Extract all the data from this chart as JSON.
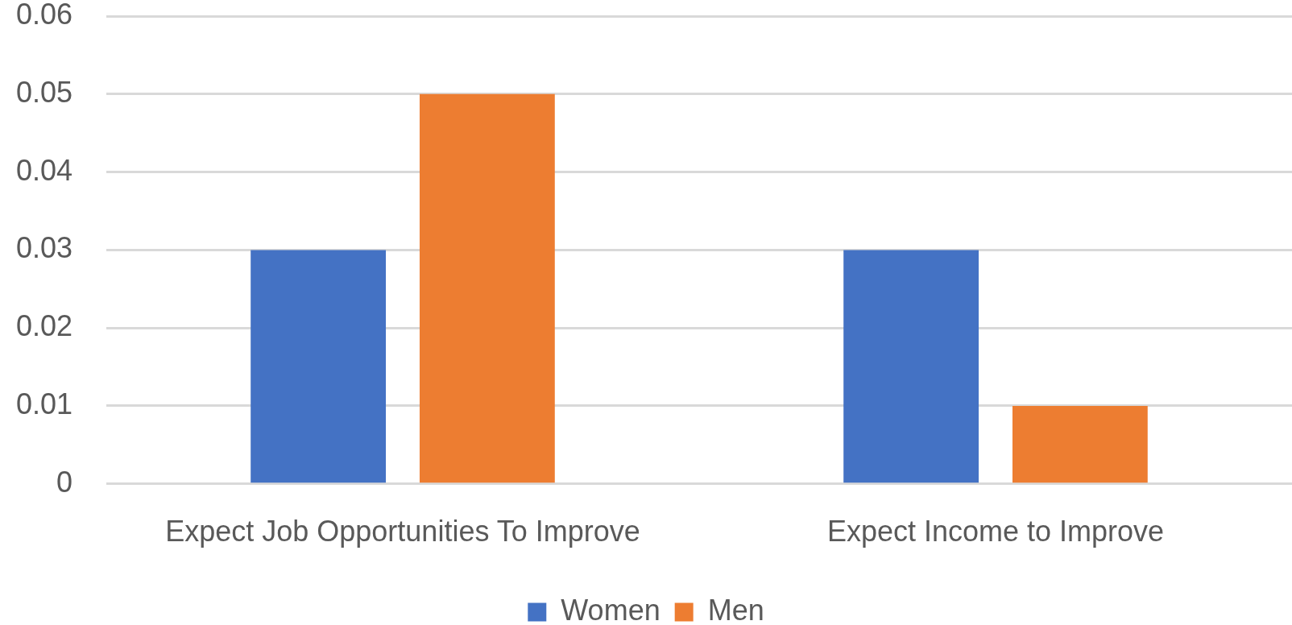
{
  "chart_data": {
    "type": "bar",
    "categories": [
      "Expect Job Opportunities To Improve",
      "Expect Income to Improve"
    ],
    "series": [
      {
        "name": "Women",
        "color": "#4472c4",
        "values": [
          0.03,
          0.03
        ]
      },
      {
        "name": "Men",
        "color": "#ed7d31",
        "values": [
          0.05,
          0.01
        ]
      }
    ],
    "ylim": [
      0,
      0.06
    ],
    "yticks": [
      0,
      0.01,
      0.02,
      0.03,
      0.04,
      0.05,
      0.06
    ],
    "grid": "y",
    "legend": "bottom"
  }
}
